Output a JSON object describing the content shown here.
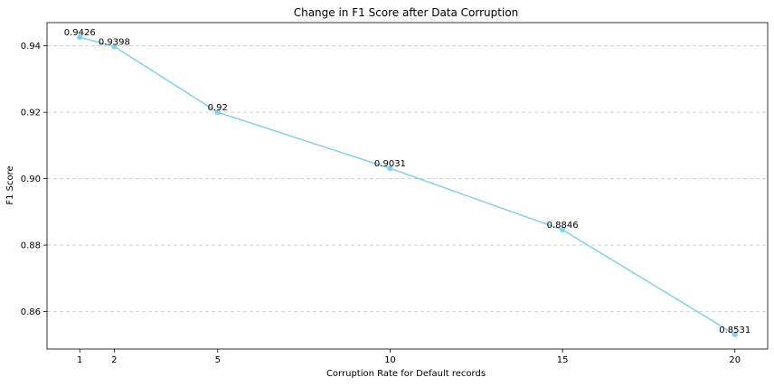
{
  "chart_data": {
    "type": "line",
    "title": "Change in F1 Score after Data Corruption",
    "xlabel": "Corruption Rate for Default records",
    "ylabel": "F1 Score",
    "x": [
      1,
      2,
      5,
      10,
      15,
      20
    ],
    "series": [
      {
        "values": [
          0.9426,
          0.9398,
          0.92,
          0.9031,
          0.8846,
          0.8531
        ],
        "color": "#87ceeb"
      }
    ],
    "data_labels": [
      "0.9426",
      "0.9398",
      "0.92",
      "0.9031",
      "0.8846",
      "0.8531"
    ],
    "x_ticks": [
      1,
      2,
      5,
      10,
      15,
      20
    ],
    "x_tick_labels": [
      "1",
      "2",
      "5",
      "10",
      "15",
      "20"
    ],
    "y_ticks": [
      0.86,
      0.88,
      0.9,
      0.92,
      0.94
    ],
    "y_tick_labels": [
      "0.86",
      "0.88",
      "0.90",
      "0.92",
      "0.94"
    ],
    "xlim": [
      0.05,
      20.95
    ],
    "ylim": [
      0.8487,
      0.947
    ],
    "grid": "y-dashed",
    "marker": "circle"
  }
}
